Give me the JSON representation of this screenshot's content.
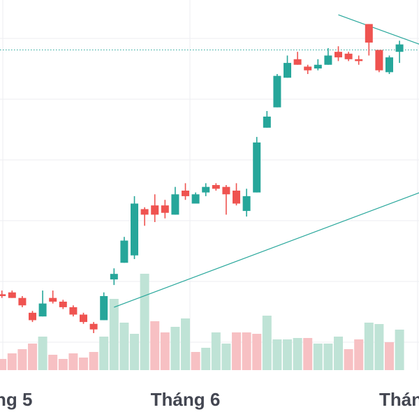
{
  "chart_data": {
    "type": "candlestick",
    "title": "",
    "x_tick_labels": [
      {
        "label": "ng 5",
        "index": 1
      },
      {
        "label": "Tháng 6",
        "index": 18
      },
      {
        "label": "Thán",
        "index": 38
      }
    ],
    "price_axis_range": [
      0,
      100
    ],
    "reference_price": 86.5,
    "grid": true,
    "colors": {
      "up": "#26a69a",
      "down": "#ef5350",
      "volume_up": "#bfe3d6",
      "volume_down": "#f7c0c3",
      "trendline": "#26a69a",
      "grid": "#eceef2"
    },
    "trendlines": [
      {
        "name": "support",
        "from": {
          "index": 11,
          "value": 17
        },
        "to": {
          "index": 41,
          "value": 48
        }
      },
      {
        "name": "resistance",
        "from": {
          "index": 33,
          "value": 96
        },
        "to": {
          "index": 41,
          "value": 88
        }
      }
    ],
    "candles": [
      {
        "o": 20.5,
        "h": 21.5,
        "l": 19.5,
        "c": 20.0
      },
      {
        "o": 21.0,
        "h": 21.5,
        "l": 19.5,
        "c": 19.5
      },
      {
        "o": 19.5,
        "h": 20.0,
        "l": 17.0,
        "c": 17.5
      },
      {
        "o": 15.5,
        "h": 16.0,
        "l": 13.0,
        "c": 13.5
      },
      {
        "o": 14.5,
        "h": 21.5,
        "l": 14.5,
        "c": 18.0
      },
      {
        "o": 19.5,
        "h": 21.5,
        "l": 18.0,
        "c": 18.5
      },
      {
        "o": 18.5,
        "h": 19.0,
        "l": 16.5,
        "c": 17.0
      },
      {
        "o": 17.0,
        "h": 17.5,
        "l": 14.5,
        "c": 15.0
      },
      {
        "o": 15.0,
        "h": 15.5,
        "l": 12.5,
        "c": 13.0
      },
      {
        "o": 12.5,
        "h": 13.0,
        "l": 10.0,
        "c": 11.0
      },
      {
        "o": 13.5,
        "h": 21.0,
        "l": 13.5,
        "c": 20.0
      },
      {
        "o": 24.5,
        "h": 27.5,
        "l": 23.0,
        "c": 26.0
      },
      {
        "o": 29.0,
        "h": 36.0,
        "l": 29.0,
        "c": 35.0
      },
      {
        "o": 31.0,
        "h": 47.0,
        "l": 30.0,
        "c": 45.0
      },
      {
        "o": 43.5,
        "h": 44.0,
        "l": 39.0,
        "c": 42.0
      },
      {
        "o": 44.5,
        "h": 47.5,
        "l": 40.0,
        "c": 42.0
      },
      {
        "o": 44.5,
        "h": 46.0,
        "l": 41.0,
        "c": 42.5
      },
      {
        "o": 42.0,
        "h": 49.5,
        "l": 42.0,
        "c": 47.5
      },
      {
        "o": 48.5,
        "h": 50.5,
        "l": 46.0,
        "c": 47.0
      },
      {
        "o": 45.0,
        "h": 48.0,
        "l": 45.0,
        "c": 47.5
      },
      {
        "o": 48.0,
        "h": 50.5,
        "l": 47.0,
        "c": 49.5
      },
      {
        "o": 50.0,
        "h": 50.5,
        "l": 48.5,
        "c": 49.0
      },
      {
        "o": 49.5,
        "h": 50.0,
        "l": 42.0,
        "c": 47.5
      },
      {
        "o": 48.5,
        "h": 50.5,
        "l": 44.5,
        "c": 45.0
      },
      {
        "o": 43.0,
        "h": 49.0,
        "l": 41.5,
        "c": 47.0
      },
      {
        "o": 48.0,
        "h": 63.0,
        "l": 48.0,
        "c": 61.5
      },
      {
        "o": 65.5,
        "h": 70.0,
        "l": 65.5,
        "c": 68.5
      },
      {
        "o": 71.0,
        "h": 80.0,
        "l": 71.0,
        "c": 79.5
      },
      {
        "o": 79.0,
        "h": 85.0,
        "l": 79.0,
        "c": 83.0
      },
      {
        "o": 84.0,
        "h": 86.0,
        "l": 82.5,
        "c": 82.5
      },
      {
        "o": 82.0,
        "h": 82.5,
        "l": 80.0,
        "c": 81.0
      },
      {
        "o": 81.5,
        "h": 84.0,
        "l": 81.0,
        "c": 82.5
      },
      {
        "o": 82.5,
        "h": 87.0,
        "l": 82.5,
        "c": 85.0
      },
      {
        "o": 86.0,
        "h": 87.5,
        "l": 83.5,
        "c": 84.5
      },
      {
        "o": 85.5,
        "h": 86.0,
        "l": 83.5,
        "c": 84.0
      },
      {
        "o": 84.0,
        "h": 85.0,
        "l": 82.5,
        "c": 83.5
      },
      {
        "o": 93.5,
        "h": 93.5,
        "l": 85.0,
        "c": 88.5
      },
      {
        "o": 86.5,
        "h": 86.5,
        "l": 80.5,
        "c": 81.0
      },
      {
        "o": 80.5,
        "h": 85.0,
        "l": 80.0,
        "c": 84.5
      },
      {
        "o": 86.0,
        "h": 89.0,
        "l": 83.0,
        "c": 88.0
      }
    ],
    "volume": [
      {
        "v": 8,
        "up": false
      },
      {
        "v": 12,
        "up": false
      },
      {
        "v": 15,
        "up": false
      },
      {
        "v": 19,
        "up": false
      },
      {
        "v": 24,
        "up": true
      },
      {
        "v": 11,
        "up": false
      },
      {
        "v": 8,
        "up": false
      },
      {
        "v": 12,
        "up": false
      },
      {
        "v": 9,
        "up": false
      },
      {
        "v": 13,
        "up": false
      },
      {
        "v": 24,
        "up": true
      },
      {
        "v": 51,
        "up": true
      },
      {
        "v": 34,
        "up": true
      },
      {
        "v": 26,
        "up": true
      },
      {
        "v": 69,
        "up": true
      },
      {
        "v": 35,
        "up": false
      },
      {
        "v": 27,
        "up": false
      },
      {
        "v": 31,
        "up": true
      },
      {
        "v": 37,
        "up": true
      },
      {
        "v": 13,
        "up": false
      },
      {
        "v": 16,
        "up": true
      },
      {
        "v": 27,
        "up": true
      },
      {
        "v": 19,
        "up": true
      },
      {
        "v": 27,
        "up": false
      },
      {
        "v": 27,
        "up": false
      },
      {
        "v": 26,
        "up": false
      },
      {
        "v": 39,
        "up": true
      },
      {
        "v": 22,
        "up": true
      },
      {
        "v": 22,
        "up": true
      },
      {
        "v": 23,
        "up": true
      },
      {
        "v": 23,
        "up": false
      },
      {
        "v": 19,
        "up": true
      },
      {
        "v": 19,
        "up": true
      },
      {
        "v": 24,
        "up": true
      },
      {
        "v": 15,
        "up": false
      },
      {
        "v": 22,
        "up": false
      },
      {
        "v": 34,
        "up": true
      },
      {
        "v": 33,
        "up": true
      },
      {
        "v": 20,
        "up": false
      },
      {
        "v": 29,
        "up": true
      }
    ]
  }
}
